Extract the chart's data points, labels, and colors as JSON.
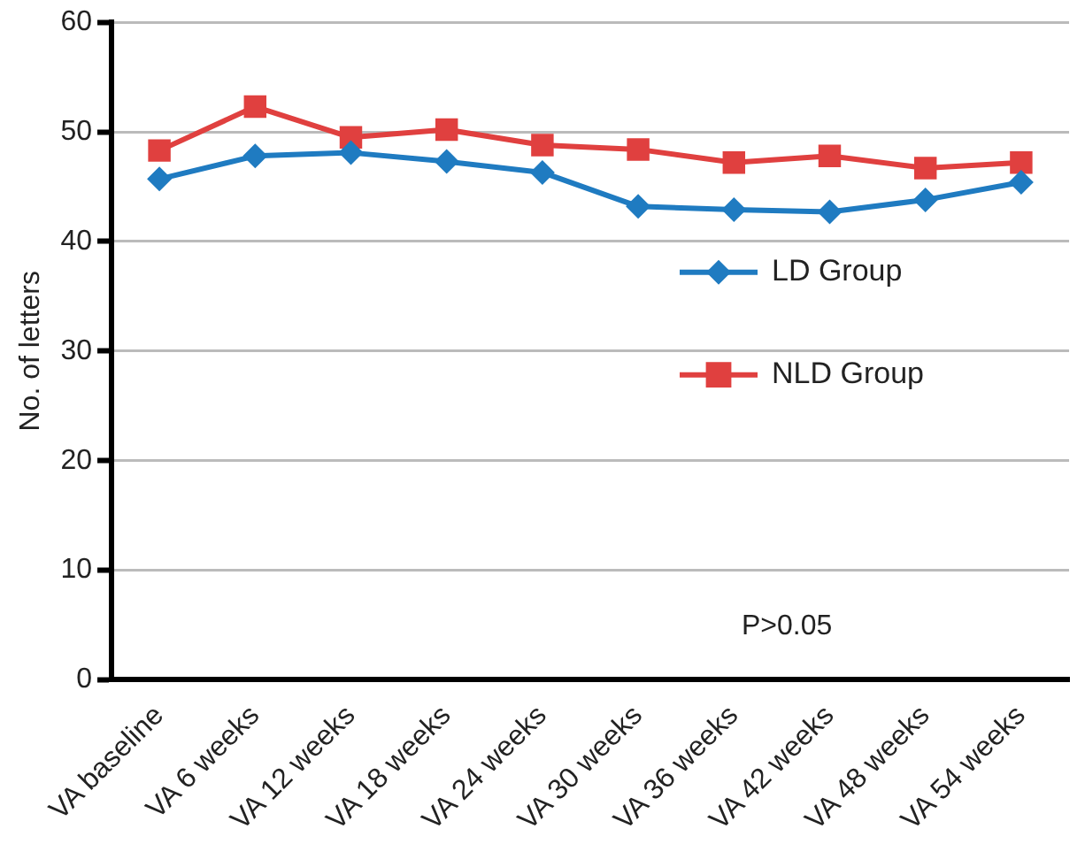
{
  "chart_data": {
    "type": "line",
    "ylabel": "No. of letters",
    "categories": [
      "VA baseline",
      "VA 6 weeks",
      "VA 12 weeks",
      "VA 18 weeks",
      "VA 24 weeks",
      "VA 30 weeks",
      "VA 36 weeks",
      "VA 42 weeks",
      "VA 48 weeks",
      "VA 54 weeks"
    ],
    "series": [
      {
        "name": "LD Group",
        "color": "#1f7bc1",
        "marker": "diamond",
        "values": [
          45.7,
          47.8,
          48.1,
          47.3,
          46.3,
          43.2,
          42.9,
          42.7,
          43.8,
          45.4
        ]
      },
      {
        "name": "NLD Group",
        "color": "#e0403f",
        "marker": "square",
        "values": [
          48.3,
          52.3,
          49.5,
          50.2,
          48.8,
          48.4,
          47.2,
          47.8,
          46.7,
          47.2
        ]
      }
    ],
    "ylim": [
      0,
      60
    ],
    "yticks": [
      0,
      10,
      20,
      30,
      40,
      50,
      60
    ],
    "grid": "y",
    "legend": "right",
    "line_style": "solid",
    "annotations": [
      "P>0.05"
    ]
  }
}
